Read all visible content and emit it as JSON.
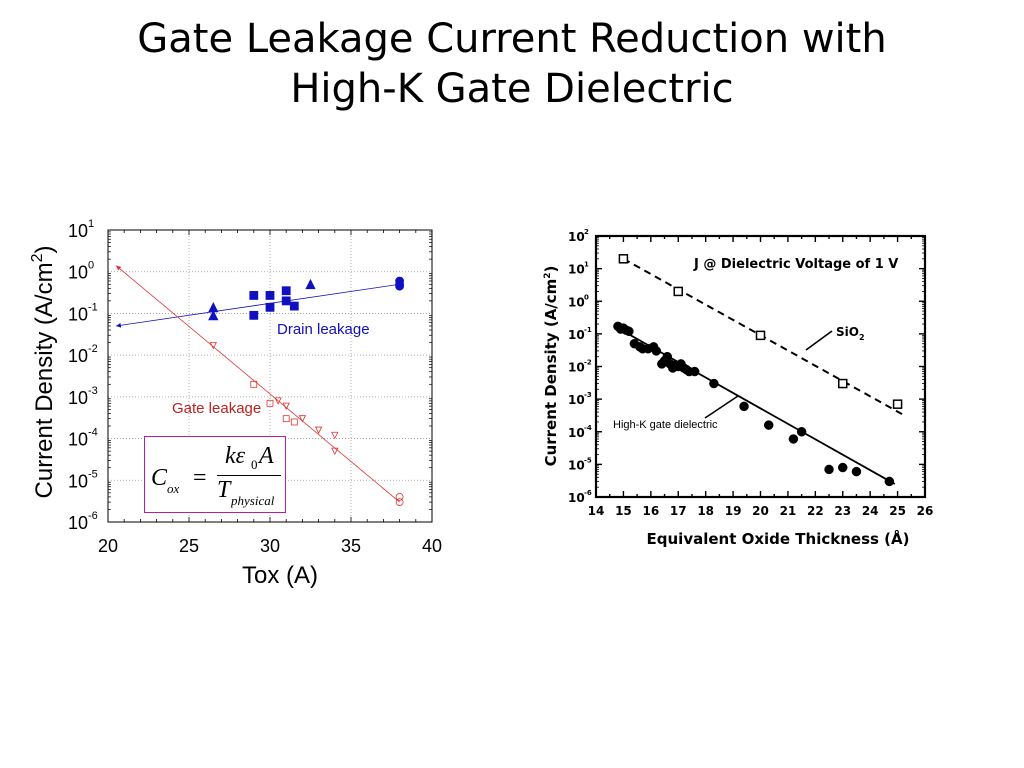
{
  "slide": {
    "title_line1": "Gate Leakage Current Reduction with",
    "title_line2": "High-K Gate Dielectric"
  },
  "formula": {
    "lhs": "C",
    "lhs_sub": "ox",
    "equals": "=",
    "num": "kε",
    "num_sub": "0",
    "num_tail": "A",
    "den": "T",
    "den_sub": "physical"
  },
  "chart_data": [
    {
      "type": "scatter",
      "xlabel": "Tox (A)",
      "ylabel": "Current Density (A/cm",
      "ylabel_sup": "2",
      "ylabel_tail": ")",
      "xlim": [
        20,
        40
      ],
      "ylim_log10": [
        -6,
        1
      ],
      "yscale": "log",
      "x_ticks": [
        "20",
        "25",
        "30",
        "35",
        "40"
      ],
      "y_ticks": [
        {
          "base": "10",
          "exp": "1"
        },
        {
          "base": "10",
          "exp": "0"
        },
        {
          "base": "10",
          "exp": "-1"
        },
        {
          "base": "10",
          "exp": "-2"
        },
        {
          "base": "10",
          "exp": "-3"
        },
        {
          "base": "10",
          "exp": "-4"
        },
        {
          "base": "10",
          "exp": "-5"
        },
        {
          "base": "10",
          "exp": "-6"
        }
      ],
      "annotations": [
        "Drain leakage",
        "Gate leakage"
      ],
      "series": [
        {
          "name": "Drain leakage",
          "color": "#1010c0",
          "squares": [
            [
              29.0,
              0.27
            ],
            [
              30.0,
              0.27
            ],
            [
              31.0,
              0.35
            ],
            [
              29.0,
              0.09
            ],
            [
              30.0,
              0.14
            ],
            [
              31.0,
              0.2
            ],
            [
              31.5,
              0.15
            ]
          ],
          "triangles": [
            [
              26.5,
              0.14
            ],
            [
              26.5,
              0.09
            ],
            [
              32.5,
              0.5
            ]
          ],
          "circles": [
            [
              38.0,
              0.6
            ],
            [
              38.0,
              0.5
            ],
            [
              38.0,
              0.45
            ]
          ],
          "trend": [
            [
              20.5,
              0.05
            ],
            [
              38.0,
              0.5
            ]
          ]
        },
        {
          "name": "Gate leakage",
          "color": "#e03030",
          "triangles": [
            [
              26.5,
              0.017
            ],
            [
              30.5,
              0.0008
            ],
            [
              31.0,
              0.0006
            ],
            [
              32.0,
              0.0003
            ],
            [
              33.0,
              0.00016
            ],
            [
              34.0,
              0.00012
            ],
            [
              34.0,
              5e-05
            ]
          ],
          "squares": [
            [
              29.0,
              0.002
            ],
            [
              30.0,
              0.0007
            ],
            [
              31.0,
              0.0003
            ],
            [
              31.5,
              0.00025
            ]
          ],
          "circles": [
            [
              38.0,
              3e-06
            ],
            [
              38.0,
              4e-06
            ]
          ],
          "trend": [
            [
              20.5,
              1.4
            ],
            [
              38.0,
              3e-06
            ]
          ]
        }
      ]
    },
    {
      "type": "scatter",
      "title": "J @ Dielectric Voltage of 1 V",
      "xlabel": "Equivalent Oxide Thickness (Å)",
      "ylabel": "Current Density (A/cm",
      "ylabel_sup": "2",
      "ylabel_tail": ")",
      "xlim": [
        14,
        26
      ],
      "ylim_log10": [
        -6,
        2
      ],
      "yscale": "log",
      "x_ticks": [
        "14",
        "15",
        "16",
        "17",
        "18",
        "19",
        "20",
        "21",
        "22",
        "23",
        "24",
        "25",
        "26"
      ],
      "y_ticks": [
        {
          "base": "10",
          "exp": "2"
        },
        {
          "base": "10",
          "exp": "1"
        },
        {
          "base": "10",
          "exp": "0"
        },
        {
          "base": "10",
          "exp": "-1"
        },
        {
          "base": "10",
          "exp": "-2"
        },
        {
          "base": "10",
          "exp": "-3"
        },
        {
          "base": "10",
          "exp": "-4"
        },
        {
          "base": "10",
          "exp": "-5"
        },
        {
          "base": "10",
          "exp": "-6"
        }
      ],
      "series": [
        {
          "name": "SiO",
          "name_sub": "2",
          "marker": "open-square",
          "x": [
            15.0,
            17.0,
            20.0,
            23.0,
            25.0
          ],
          "y": [
            20,
            2,
            0.09,
            0.003,
            0.0007
          ],
          "trend": [
            [
              15.0,
              20
            ],
            [
              25.3,
              0.0003
            ]
          ]
        },
        {
          "name": "High-K gate dielectric",
          "marker": "filled-circle",
          "x": [
            14.8,
            14.9,
            15.0,
            15.1,
            15.2,
            15.4,
            15.6,
            15.7,
            15.9,
            16.1,
            16.2,
            16.4,
            16.5,
            16.6,
            16.7,
            16.8,
            16.9,
            17.0,
            17.1,
            17.2,
            17.3,
            17.4,
            17.6,
            18.3,
            19.4,
            20.3,
            21.2,
            21.5,
            22.5,
            23.0,
            23.5,
            24.7
          ],
          "y": [
            0.17,
            0.14,
            0.15,
            0.13,
            0.12,
            0.05,
            0.04,
            0.035,
            0.035,
            0.04,
            0.03,
            0.012,
            0.015,
            0.02,
            0.012,
            0.009,
            0.011,
            0.01,
            0.012,
            0.009,
            0.008,
            0.007,
            0.007,
            0.003,
            0.0006,
            0.00016,
            6e-05,
            0.0001,
            7e-06,
            8e-06,
            6e-06,
            3e-06
          ],
          "trend": [
            [
              14.8,
              0.15
            ],
            [
              24.9,
              2.5e-06
            ]
          ]
        }
      ]
    }
  ]
}
